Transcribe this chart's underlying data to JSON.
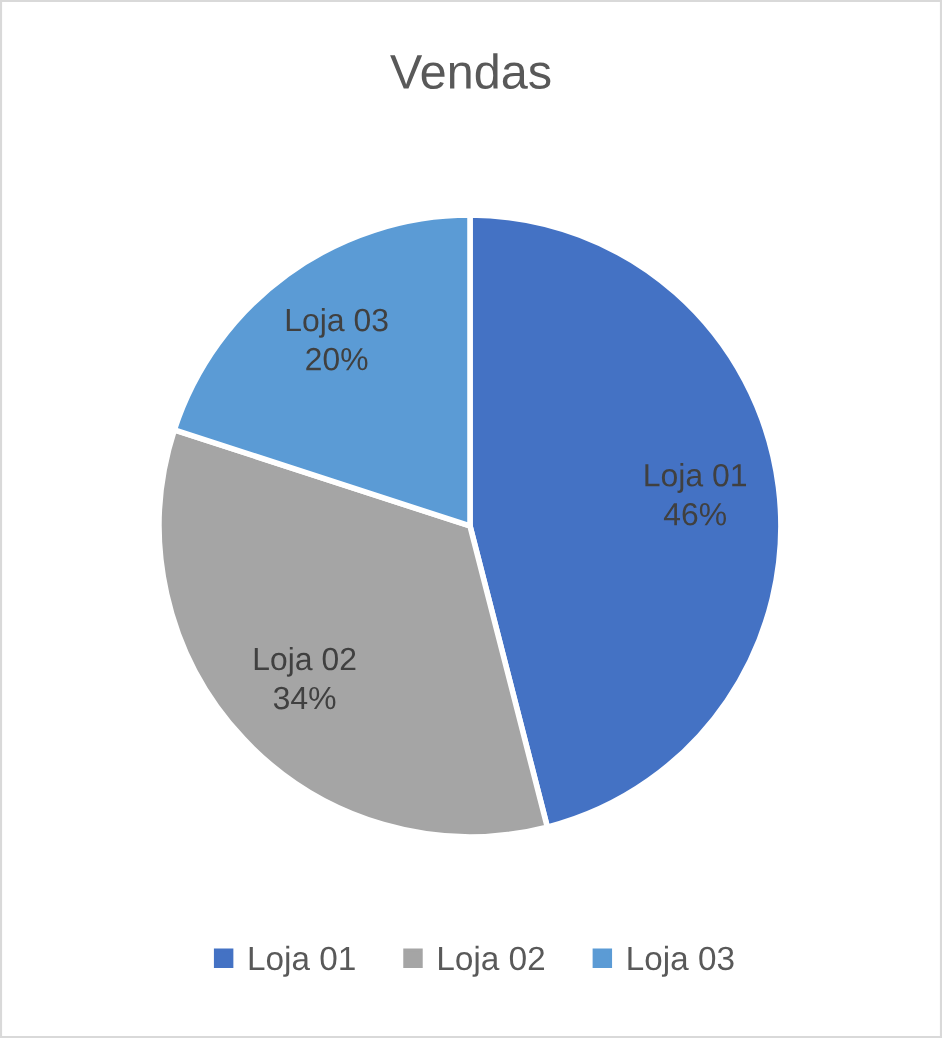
{
  "chart_data": {
    "type": "pie",
    "title": "Vendas",
    "categories": [
      "Loja 01",
      "Loja 02",
      "Loja 03"
    ],
    "values": [
      46,
      34,
      20
    ],
    "value_labels": [
      "46%",
      "34%",
      "20%"
    ],
    "colors": [
      "#4472c4",
      "#a5a5a5",
      "#5b9bd5"
    ],
    "legend": "bottom"
  }
}
